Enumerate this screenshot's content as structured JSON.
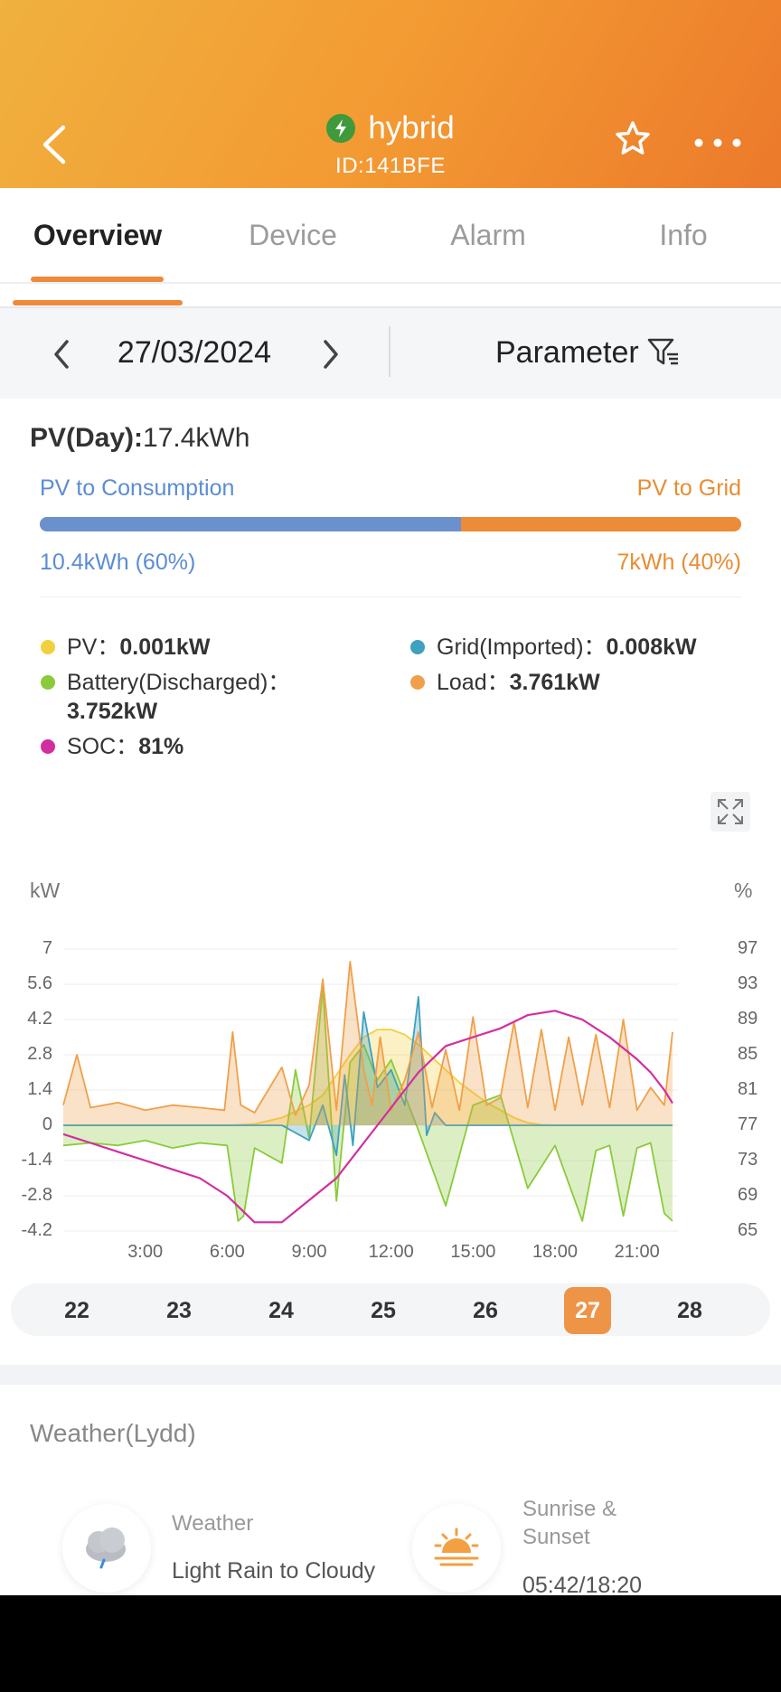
{
  "header": {
    "title": "hybrid",
    "plant_id": "ID:141BFE",
    "bg_start": "#f0b13e",
    "bg_end": "#ec7a2b"
  },
  "tabs": [
    {
      "label": "Overview",
      "active": true
    },
    {
      "label": "Device"
    },
    {
      "label": "Alarm"
    },
    {
      "label": "Info"
    }
  ],
  "datebar": {
    "date": "27/03/2024",
    "parameter_label": "Parameter"
  },
  "pv_day": {
    "label": "PV(Day):",
    "value": "17.4kWh"
  },
  "split": {
    "left_label": "PV to Consumption",
    "right_label": "PV to Grid",
    "left_value": "10.4kWh (60%)",
    "right_value": "7kWh (40%)",
    "consumption_fraction": 0.6,
    "left_color": "#6a91cc",
    "right_color": "#ec8b38"
  },
  "legend": [
    {
      "label": "PV：",
      "value": "0.001kW",
      "color": "#f2d03d"
    },
    {
      "label": "Grid(Imported)：",
      "value": "0.008kW",
      "color": "#3fa0c0"
    },
    {
      "label": "Battery(Discharged)：",
      "value": "3.752kW",
      "color": "#8acb3a"
    },
    {
      "label": "Load：",
      "value": "3.761kW",
      "color": "#f0a04a"
    },
    {
      "label": "SOC：",
      "value": "81%",
      "color": "#d12ea0"
    }
  ],
  "chart_data": {
    "type": "line",
    "ylabel": "kW",
    "y2label": "%",
    "ylim": [
      -4.2,
      7
    ],
    "y2lim": [
      65,
      97
    ],
    "y_ticks": [
      "7",
      "5.6",
      "4.2",
      "2.8",
      "1.4",
      "0",
      "-1.4",
      "-2.8",
      "-4.2"
    ],
    "y2_ticks": [
      "97",
      "93",
      "89",
      "85",
      "81",
      "77",
      "73",
      "69",
      "65"
    ],
    "x_ticks": [
      "3:00",
      "6:00",
      "9:00",
      "12:00",
      "15:00",
      "18:00",
      "21:00"
    ],
    "xlim": [
      0,
      22.5
    ],
    "series": [
      {
        "name": "PV",
        "color": "#f2d03d",
        "x": [
          0,
          6,
          7,
          8,
          9,
          9.5,
          10,
          10.5,
          11,
          11.5,
          12,
          12.5,
          13,
          13.5,
          14,
          14.5,
          15,
          15.5,
          16,
          16.5,
          17,
          17.5,
          18,
          19,
          22.3
        ],
        "y": [
          0,
          0,
          0.05,
          0.3,
          0.8,
          1.2,
          2.0,
          2.8,
          3.5,
          3.8,
          3.8,
          3.6,
          3.2,
          2.7,
          2.2,
          1.7,
          1.3,
          0.9,
          0.6,
          0.3,
          0.1,
          0.02,
          0,
          0,
          0
        ]
      },
      {
        "name": "Battery(Discharged)",
        "color": "#8acb3a",
        "x": [
          0,
          1,
          2,
          3,
          4,
          5,
          6,
          6.4,
          6.6,
          7,
          8,
          8.5,
          9,
          9.5,
          10,
          10.5,
          11,
          11.5,
          12,
          12.5,
          13,
          14,
          15,
          16,
          17,
          18,
          19,
          19.5,
          20,
          20.5,
          21,
          21.5,
          22,
          22.3
        ],
        "y": [
          -0.8,
          -0.7,
          -0.8,
          -0.6,
          -0.9,
          -0.7,
          -0.8,
          -3.8,
          -3.6,
          -0.9,
          -1.5,
          2.2,
          -0.5,
          5.5,
          -3.0,
          2.5,
          3.2,
          1.8,
          2.6,
          1.2,
          -0.2,
          -3.2,
          0.8,
          1.2,
          -2.5,
          -0.8,
          -3.8,
          -1.0,
          -0.8,
          -3.6,
          -0.9,
          -0.7,
          -3.5,
          -3.8
        ]
      },
      {
        "name": "Grid(Imported)",
        "color": "#3fa0c0",
        "x": [
          0,
          8,
          9,
          9.5,
          10,
          10.3,
          10.6,
          11,
          11.5,
          12,
          12.5,
          13,
          13.3,
          13.6,
          14,
          15,
          22.3
        ],
        "y": [
          0,
          0,
          -0.6,
          0.8,
          -1.2,
          2.0,
          -0.8,
          4.5,
          1.5,
          2.2,
          0.8,
          5.1,
          -0.4,
          0.5,
          0,
          0,
          0
        ]
      },
      {
        "name": "Load",
        "color": "#f0a04a",
        "x": [
          0,
          0.5,
          1,
          2,
          3,
          4,
          5,
          5.9,
          6.2,
          6.5,
          7,
          8,
          8.5,
          9,
          9.5,
          10,
          10.5,
          11,
          11.3,
          11.6,
          12,
          12.5,
          13,
          13.5,
          14,
          14.5,
          15,
          15.5,
          16,
          16.5,
          17,
          17.5,
          18,
          18.5,
          19,
          19.5,
          20,
          20.5,
          21,
          21.5,
          22,
          22.3
        ],
        "y": [
          0.8,
          2.8,
          0.7,
          0.9,
          0.6,
          0.8,
          0.7,
          0.6,
          3.7,
          0.8,
          0.5,
          2.3,
          0.4,
          1.6,
          5.8,
          0.6,
          6.5,
          2.2,
          0.8,
          3.5,
          0.6,
          1.8,
          3.7,
          0.7,
          3.0,
          0.6,
          4.3,
          0.8,
          1.1,
          4.1,
          0.7,
          3.8,
          0.6,
          3.5,
          0.8,
          3.6,
          0.7,
          4.2,
          0.6,
          1.5,
          0.8,
          3.7
        ]
      },
      {
        "name": "SOC",
        "color": "#d12ea0",
        "axis": "right",
        "x": [
          0,
          1,
          2,
          3,
          4,
          5,
          6,
          6.5,
          7,
          8,
          9,
          10,
          11,
          12,
          13,
          14,
          15,
          16,
          17,
          18,
          19,
          20,
          21,
          21.5,
          22,
          22.3
        ],
        "y": [
          76,
          75,
          74,
          73,
          72,
          71,
          69,
          67.5,
          66,
          66,
          68.5,
          71,
          75,
          79,
          83,
          86,
          87,
          88,
          89.5,
          90,
          89,
          87,
          84.5,
          83,
          81,
          79.5
        ]
      }
    ]
  },
  "days": [
    {
      "label": "22"
    },
    {
      "label": "23"
    },
    {
      "label": "24"
    },
    {
      "label": "25"
    },
    {
      "label": "26"
    },
    {
      "label": "27",
      "selected": true
    },
    {
      "label": "28"
    }
  ],
  "weather": {
    "title": "Weather(Lydd)",
    "weather_label": "Weather",
    "weather_value": "Light Rain to Cloudy",
    "sun_label": "Sunrise & Sunset",
    "sun_value": "05:42/18:20",
    "weather_icon": "cloud-rain-icon",
    "sun_icon": "sunrise-icon"
  }
}
